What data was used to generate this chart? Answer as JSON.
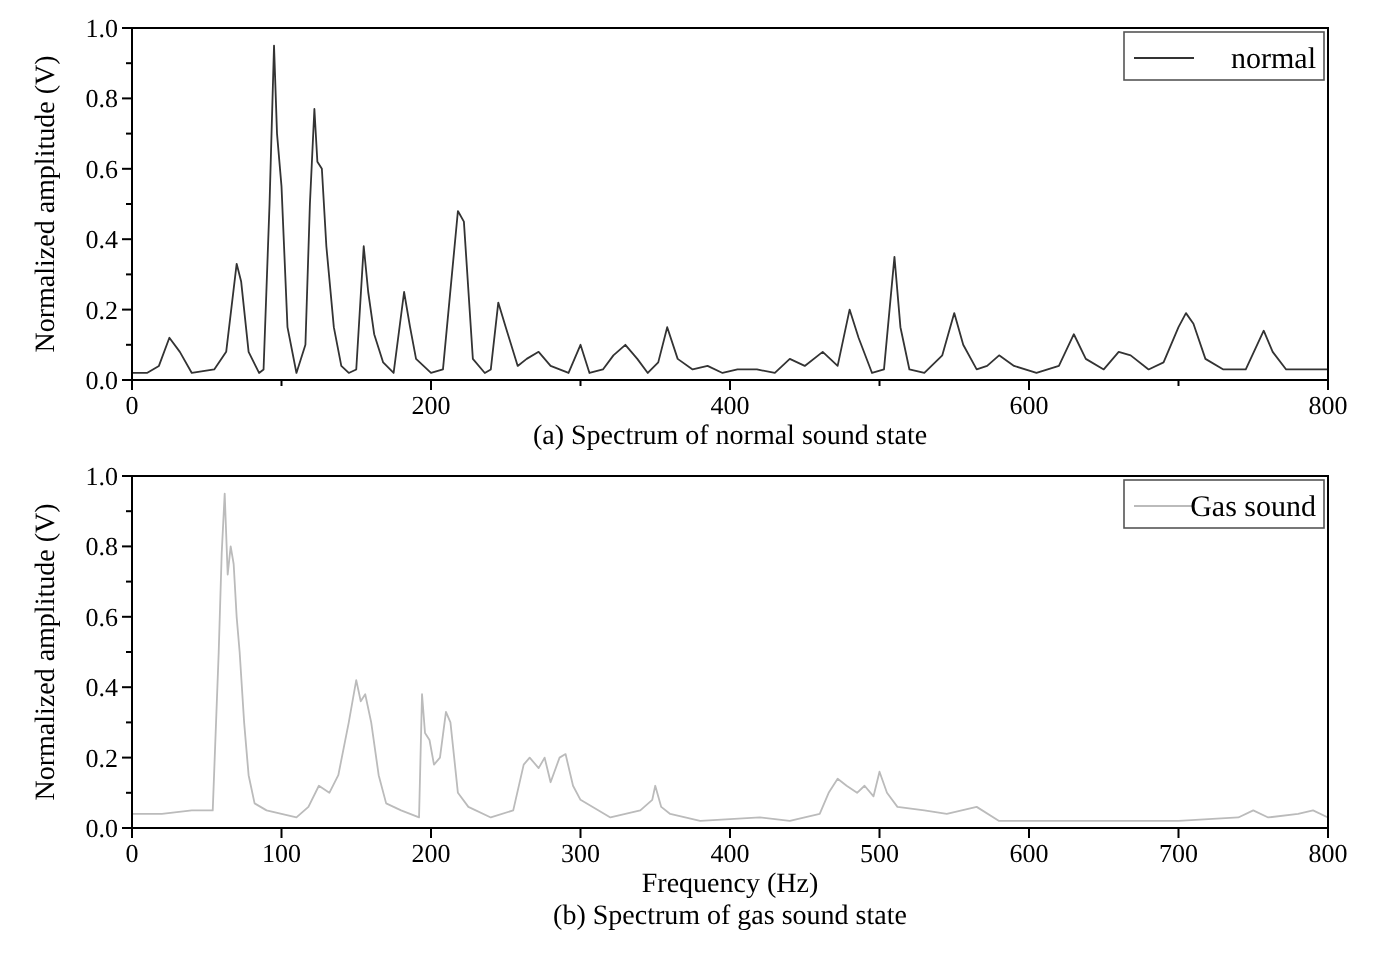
{
  "chart_data": [
    {
      "type": "line",
      "title": "(a) Spectrum of normal sound state",
      "ylabel": "Normalized amplitude (V)",
      "xlim": [
        0,
        800
      ],
      "ylim": [
        0,
        1
      ],
      "xticks": [
        0,
        {
          "value": 100,
          "label": null
        },
        200,
        {
          "value": 300,
          "label": null
        },
        400,
        {
          "value": 500,
          "label": null
        },
        600,
        {
          "value": 700,
          "label": null
        },
        800
      ],
      "yticks": [
        "0.0",
        {
          "value": 0.1,
          "label": null
        },
        {
          "value": 0.2,
          "label": "0.2"
        },
        {
          "value": 0.3,
          "label": null
        },
        {
          "value": 0.4,
          "label": "0.4"
        },
        {
          "value": 0.5,
          "label": null
        },
        {
          "value": 0.6,
          "label": "0.6"
        },
        {
          "value": 0.7,
          "label": null
        },
        {
          "value": 0.8,
          "label": "0.8"
        },
        {
          "value": 0.9,
          "label": null
        },
        {
          "value": 1,
          "label": "1.0"
        }
      ],
      "legend": "top right",
      "grid": false,
      "marker": "none",
      "line_style": "solid",
      "series": [
        {
          "name": "normal",
          "color": "#333333",
          "x": [
            0,
            10,
            18,
            25,
            32,
            40,
            55,
            63,
            70,
            73,
            78,
            85,
            88,
            92,
            95,
            97,
            100,
            104,
            110,
            116,
            119,
            122,
            124,
            127,
            130,
            135,
            140,
            145,
            150,
            155,
            158,
            162,
            168,
            175,
            182,
            186,
            190,
            200,
            208,
            214,
            218,
            222,
            228,
            236,
            240,
            245,
            250,
            258,
            264,
            272,
            280,
            292,
            300,
            306,
            315,
            322,
            330,
            338,
            345,
            352,
            358,
            365,
            375,
            385,
            395,
            405,
            418,
            430,
            440,
            450,
            462,
            472,
            480,
            486,
            495,
            503,
            510,
            514,
            520,
            530,
            542,
            550,
            556,
            565,
            572,
            580,
            590,
            605,
            620,
            630,
            638,
            650,
            660,
            668,
            680,
            690,
            700,
            705,
            710,
            718,
            730,
            745,
            757,
            763,
            772,
            785,
            800
          ],
          "values": [
            0.02,
            0.02,
            0.04,
            0.12,
            0.08,
            0.02,
            0.03,
            0.08,
            0.33,
            0.28,
            0.08,
            0.02,
            0.03,
            0.5,
            0.95,
            0.7,
            0.55,
            0.15,
            0.02,
            0.1,
            0.5,
            0.77,
            0.62,
            0.6,
            0.38,
            0.15,
            0.04,
            0.02,
            0.03,
            0.38,
            0.25,
            0.13,
            0.05,
            0.02,
            0.25,
            0.15,
            0.06,
            0.02,
            0.03,
            0.3,
            0.48,
            0.45,
            0.06,
            0.02,
            0.03,
            0.22,
            0.15,
            0.04,
            0.06,
            0.08,
            0.04,
            0.02,
            0.1,
            0.02,
            0.03,
            0.07,
            0.1,
            0.06,
            0.02,
            0.05,
            0.15,
            0.06,
            0.03,
            0.04,
            0.02,
            0.03,
            0.03,
            0.02,
            0.06,
            0.04,
            0.08,
            0.04,
            0.2,
            0.12,
            0.02,
            0.03,
            0.35,
            0.15,
            0.03,
            0.02,
            0.07,
            0.19,
            0.1,
            0.03,
            0.04,
            0.07,
            0.04,
            0.02,
            0.04,
            0.13,
            0.06,
            0.03,
            0.08,
            0.07,
            0.03,
            0.05,
            0.15,
            0.19,
            0.16,
            0.06,
            0.03,
            0.03,
            0.14,
            0.08,
            0.03,
            0.03,
            0.03
          ]
        }
      ]
    },
    {
      "type": "line",
      "title": "(b) Spectrum of gas sound state",
      "xlabel": "Frequency (Hz)",
      "ylabel": "Normalized amplitude (V)",
      "xlim": [
        0,
        800
      ],
      "ylim": [
        0,
        1
      ],
      "xticks": [
        0,
        100,
        200,
        300,
        400,
        500,
        600,
        700,
        800
      ],
      "yticks": [
        "0.0",
        {
          "value": 0.1,
          "label": null
        },
        {
          "value": 0.2,
          "label": "0.2"
        },
        {
          "value": 0.3,
          "label": null
        },
        {
          "value": 0.4,
          "label": "0.4"
        },
        {
          "value": 0.5,
          "label": null
        },
        {
          "value": 0.6,
          "label": "0.6"
        },
        {
          "value": 0.7,
          "label": null
        },
        {
          "value": 0.8,
          "label": "0.8"
        },
        {
          "value": 0.9,
          "label": null
        },
        {
          "value": 1,
          "label": "1.0"
        }
      ],
      "legend": "top right",
      "grid": false,
      "marker": "none",
      "line_style": "solid",
      "series": [
        {
          "name": "Gas sound",
          "color": "#bbbbbb",
          "x": [
            0,
            20,
            40,
            54,
            58,
            60,
            62,
            64,
            66,
            68,
            70,
            72,
            75,
            78,
            82,
            90,
            110,
            118,
            125,
            132,
            138,
            145,
            150,
            153,
            156,
            160,
            165,
            170,
            180,
            192,
            194,
            196,
            199,
            202,
            206,
            210,
            213,
            218,
            225,
            240,
            255,
            262,
            266,
            272,
            276,
            280,
            286,
            290,
            295,
            300,
            320,
            340,
            348,
            350,
            354,
            360,
            380,
            420,
            440,
            460,
            466,
            472,
            478,
            485,
            490,
            496,
            500,
            505,
            512,
            530,
            545,
            565,
            580,
            620,
            700,
            740,
            750,
            760,
            780,
            790,
            800
          ],
          "values": [
            0.04,
            0.04,
            0.05,
            0.05,
            0.5,
            0.78,
            0.95,
            0.72,
            0.8,
            0.75,
            0.6,
            0.5,
            0.3,
            0.15,
            0.07,
            0.05,
            0.03,
            0.06,
            0.12,
            0.1,
            0.15,
            0.3,
            0.42,
            0.36,
            0.38,
            0.3,
            0.15,
            0.07,
            0.05,
            0.03,
            0.38,
            0.27,
            0.25,
            0.18,
            0.2,
            0.33,
            0.3,
            0.1,
            0.06,
            0.03,
            0.05,
            0.18,
            0.2,
            0.17,
            0.2,
            0.13,
            0.2,
            0.21,
            0.12,
            0.08,
            0.03,
            0.05,
            0.08,
            0.12,
            0.06,
            0.04,
            0.02,
            0.03,
            0.02,
            0.04,
            0.1,
            0.14,
            0.12,
            0.1,
            0.12,
            0.09,
            0.16,
            0.1,
            0.06,
            0.05,
            0.04,
            0.06,
            0.02,
            0.02,
            0.02,
            0.03,
            0.05,
            0.03,
            0.04,
            0.05,
            0.03
          ]
        }
      ]
    }
  ]
}
